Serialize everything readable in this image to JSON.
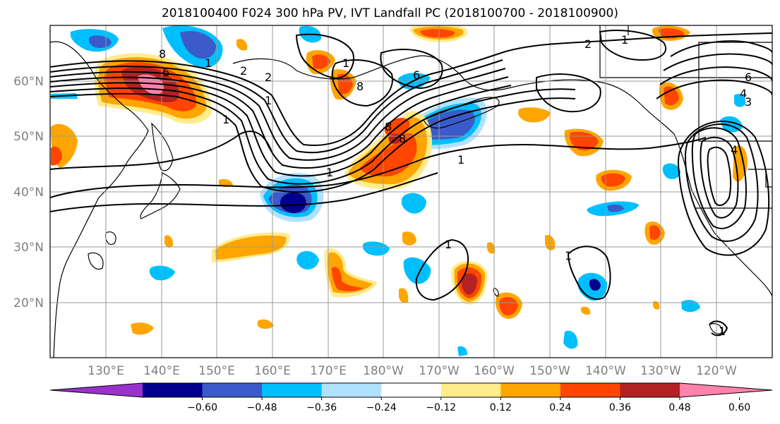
{
  "title": "2018100400 F024 300 hPa PV, IVT Landfall PC (2018100700 - 2018100900)",
  "axes": {
    "lat_labels": [
      "20°N",
      "30°N",
      "40°N",
      "50°N",
      "60°N"
    ],
    "lon_labels": [
      "130°E",
      "140°E",
      "150°E",
      "160°E",
      "170°E",
      "180°W",
      "170°W",
      "160°W",
      "150°W",
      "140°W",
      "130°W",
      "120°W"
    ],
    "lat_range": [
      10,
      70
    ],
    "lon_range_east": [
      120,
      250
    ],
    "grid": true
  },
  "colorbar": {
    "colors": [
      "#9932cc",
      "#00008b",
      "#3a5bc9",
      "#00bfff",
      "#b0e2ff",
      "#ffffff",
      "#ffec8b",
      "#ffa500",
      "#ff4500",
      "#b22222",
      "#ff83aa"
    ],
    "tick_labels": [
      "−0.60",
      "−0.48",
      "−0.36",
      "−0.24",
      "−0.12",
      "0.12",
      "0.24",
      "0.36",
      "0.48",
      "0.60"
    ],
    "extend": "both"
  },
  "contour_labels": [
    "8",
    "1",
    "1",
    "6",
    "2",
    "1",
    "2",
    "8",
    "1",
    "6",
    "1",
    "1",
    "8",
    "8",
    "2",
    "1",
    "6",
    "4",
    "3",
    "1",
    "1",
    "1",
    "4"
  ],
  "colors": {
    "contour": "#000000",
    "land": "#000000",
    "grid": "#9a9a9a"
  }
}
